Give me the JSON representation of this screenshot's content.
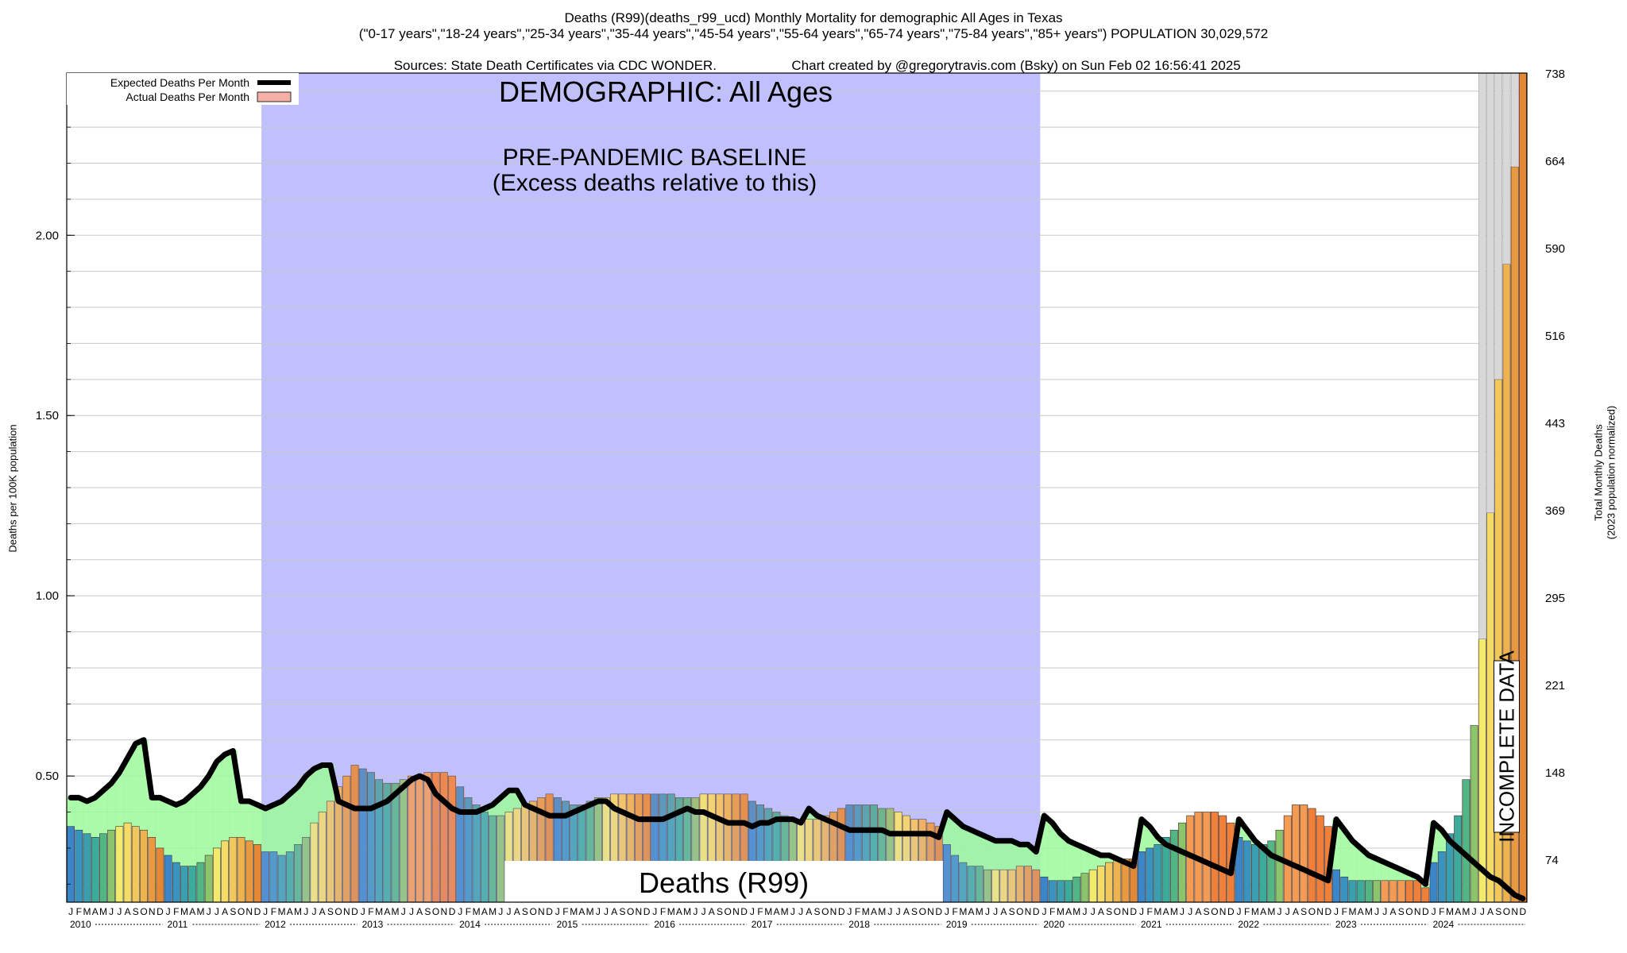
{
  "header": {
    "line1": "Deaths (R99)(deaths_r99_ucd) Monthly Mortality for demographic All Ages in Texas",
    "line2": "(\"0-17 years\",\"18-24 years\",\"25-34 years\",\"35-44 years\",\"45-54 years\",\"55-64 years\",\"65-74 years\",\"75-84 years\",\"85+ years\") POPULATION 30,029,572",
    "line3_left": "Sources: State Death Certificates via CDC WONDER.",
    "line3_right": "Chart created by @gregorytravis.com (Bsky) on Sun Feb 02 16:56:41 2025"
  },
  "legend": {
    "expected_label": "Expected Deaths Per Month",
    "actual_label": "Actual Deaths Per Month"
  },
  "annotations": {
    "demographic": "DEMOGRAPHIC: All Ages",
    "baseline_1": "PRE-PANDEMIC BASELINE",
    "baseline_2": "(Excess deaths relative to this)",
    "cause": "Deaths (R99)",
    "incomplete": "INCOMPLETE DATA"
  },
  "colors": {
    "baseline_shade": "#c0c0ff",
    "excess_fill": "#9cfa9c",
    "actual_fill": "#f4b0a8",
    "expected_line": "#000000"
  },
  "chart_data": {
    "type": "bar",
    "title": "Deaths (R99)(deaths_r99_ucd) Monthly Mortality for demographic All Ages in Texas",
    "ylabel": "Deaths per 100K population",
    "y2label_1": "Total Monthly Deaths",
    "y2label_2": "(2023 population normalized)",
    "ylim": [
      0.15,
      2.45
    ],
    "y_ticks": [
      0.5,
      1.0,
      1.5,
      2.0
    ],
    "y_tick_labels": [
      "0.50",
      "1.00",
      "1.50",
      "2.00"
    ],
    "y2_tick_labels": [
      "74",
      "148",
      "221",
      "295",
      "369",
      "443",
      "516",
      "590",
      "664",
      "738"
    ],
    "month_letters": [
      "J",
      "F",
      "M",
      "A",
      "M",
      "J",
      "J",
      "A",
      "S",
      "O",
      "N",
      "D"
    ],
    "years": [
      "2010",
      "2011",
      "2012",
      "2013",
      "2014",
      "2015",
      "2016",
      "2017",
      "2018",
      "2019",
      "2020",
      "2021",
      "2022",
      "2023",
      "2024"
    ],
    "baseline_years": [
      "2012",
      "2013",
      "2014",
      "2015",
      "2016",
      "2017",
      "2018",
      "2019"
    ],
    "grid": true,
    "series": [
      {
        "name": "Actual Deaths Per Month",
        "values": [
          0.36,
          0.35,
          0.34,
          0.33,
          0.34,
          0.35,
          0.36,
          0.37,
          0.36,
          0.35,
          0.33,
          0.3,
          0.28,
          0.26,
          0.25,
          0.25,
          0.26,
          0.28,
          0.3,
          0.32,
          0.33,
          0.33,
          0.32,
          0.31,
          0.29,
          0.29,
          0.28,
          0.29,
          0.31,
          0.33,
          0.37,
          0.4,
          0.43,
          0.47,
          0.5,
          0.53,
          0.52,
          0.51,
          0.49,
          0.48,
          0.48,
          0.49,
          0.5,
          0.5,
          0.51,
          0.51,
          0.51,
          0.5,
          0.47,
          0.44,
          0.42,
          0.4,
          0.39,
          0.39,
          0.4,
          0.41,
          0.42,
          0.43,
          0.44,
          0.45,
          0.44,
          0.43,
          0.42,
          0.42,
          0.43,
          0.44,
          0.44,
          0.45,
          0.45,
          0.45,
          0.45,
          0.45,
          0.45,
          0.45,
          0.45,
          0.44,
          0.44,
          0.44,
          0.45,
          0.45,
          0.45,
          0.45,
          0.45,
          0.45,
          0.43,
          0.42,
          0.41,
          0.4,
          0.39,
          0.38,
          0.38,
          0.38,
          0.38,
          0.39,
          0.4,
          0.41,
          0.42,
          0.42,
          0.42,
          0.42,
          0.41,
          0.41,
          0.4,
          0.39,
          0.38,
          0.38,
          0.37,
          0.36,
          0.31,
          0.28,
          0.26,
          0.25,
          0.25,
          0.24,
          0.24,
          0.24,
          0.24,
          0.25,
          0.25,
          0.24,
          0.22,
          0.21,
          0.21,
          0.21,
          0.22,
          0.23,
          0.24,
          0.25,
          0.26,
          0.27,
          0.27,
          0.27,
          0.29,
          0.3,
          0.31,
          0.33,
          0.35,
          0.37,
          0.39,
          0.4,
          0.4,
          0.4,
          0.39,
          0.37,
          0.33,
          0.32,
          0.31,
          0.31,
          0.32,
          0.35,
          0.39,
          0.42,
          0.42,
          0.41,
          0.39,
          0.36,
          0.24,
          0.22,
          0.21,
          0.21,
          0.21,
          0.21,
          0.21,
          0.21,
          0.21,
          0.21,
          0.21,
          0.19,
          0.26,
          0.29,
          0.34,
          0.39,
          0.49,
          0.64,
          0.88,
          1.23,
          1.6,
          1.92,
          2.19,
          2.45
        ]
      },
      {
        "name": "Expected Deaths Per Month",
        "values": [
          0.44,
          0.44,
          0.43,
          0.44,
          0.46,
          0.48,
          0.51,
          0.55,
          0.59,
          0.6,
          0.44,
          0.44,
          0.43,
          0.42,
          0.43,
          0.45,
          0.47,
          0.5,
          0.54,
          0.56,
          0.57,
          0.43,
          0.43,
          0.42,
          0.41,
          0.42,
          0.43,
          0.45,
          0.47,
          0.5,
          0.52,
          0.53,
          0.53,
          0.43,
          0.42,
          0.41,
          0.41,
          0.41,
          0.42,
          0.43,
          0.45,
          0.47,
          0.49,
          0.5,
          0.49,
          0.45,
          0.43,
          0.41,
          0.4,
          0.4,
          0.4,
          0.41,
          0.42,
          0.44,
          0.46,
          0.46,
          0.42,
          0.41,
          0.4,
          0.39,
          0.39,
          0.39,
          0.4,
          0.41,
          0.42,
          0.43,
          0.43,
          0.41,
          0.4,
          0.39,
          0.38,
          0.38,
          0.38,
          0.38,
          0.39,
          0.4,
          0.41,
          0.4,
          0.4,
          0.39,
          0.38,
          0.37,
          0.37,
          0.37,
          0.36,
          0.37,
          0.37,
          0.38,
          0.38,
          0.38,
          0.37,
          0.41,
          0.39,
          0.38,
          0.37,
          0.36,
          0.35,
          0.35,
          0.35,
          0.35,
          0.35,
          0.34,
          0.34,
          0.34,
          0.34,
          0.34,
          0.34,
          0.33,
          0.4,
          0.38,
          0.36,
          0.35,
          0.34,
          0.33,
          0.32,
          0.32,
          0.32,
          0.31,
          0.31,
          0.29,
          0.39,
          0.37,
          0.34,
          0.32,
          0.31,
          0.3,
          0.29,
          0.28,
          0.28,
          0.27,
          0.26,
          0.25,
          0.38,
          0.36,
          0.33,
          0.31,
          0.3,
          0.29,
          0.28,
          0.27,
          0.26,
          0.25,
          0.24,
          0.23,
          0.38,
          0.35,
          0.32,
          0.3,
          0.28,
          0.27,
          0.26,
          0.25,
          0.24,
          0.23,
          0.22,
          0.21,
          0.38,
          0.35,
          0.32,
          0.3,
          0.28,
          0.27,
          0.26,
          0.25,
          0.24,
          0.23,
          0.22,
          0.2,
          0.37,
          0.35,
          0.32,
          0.3,
          0.28,
          0.26,
          0.24,
          0.22,
          0.21,
          0.19,
          0.17,
          0.16
        ]
      }
    ]
  }
}
